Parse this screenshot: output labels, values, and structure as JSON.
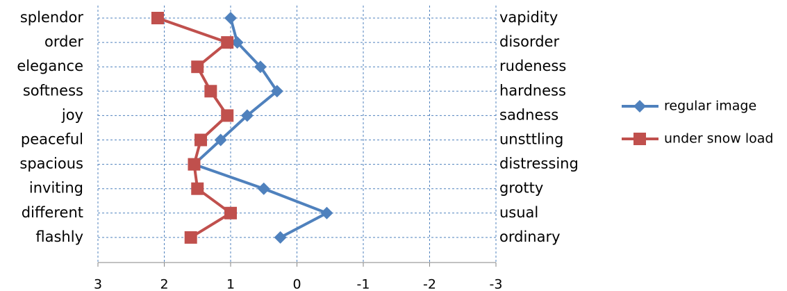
{
  "chart_data": {
    "type": "line",
    "orientation": "horizontal",
    "categories": [
      "splendor",
      "order",
      "elegance",
      "softness",
      "joy",
      "peaceful",
      "spacious",
      "inviting",
      "different",
      "flashly"
    ],
    "right_categories": [
      "vapidity",
      "disorder",
      "rudeness",
      "hardness",
      "sadness",
      "unsttling",
      "distressing",
      "grotty",
      "usual",
      "ordinary"
    ],
    "series": [
      {
        "name": "regular image",
        "color": "#4f81bd",
        "marker": "diamond",
        "values": [
          1.0,
          0.9,
          0.55,
          0.3,
          0.75,
          1.15,
          1.55,
          0.5,
          -0.45,
          0.25
        ]
      },
      {
        "name": "under snow load",
        "color": "#c0504d",
        "marker": "square",
        "values": [
          2.1,
          1.05,
          1.5,
          1.3,
          1.05,
          1.45,
          1.55,
          1.5,
          1.0,
          1.6
        ]
      }
    ],
    "xlim": [
      3,
      -3
    ],
    "xticks": [
      3,
      2,
      1,
      0,
      -1,
      -2,
      -3
    ],
    "grid": true,
    "legend": "right"
  }
}
